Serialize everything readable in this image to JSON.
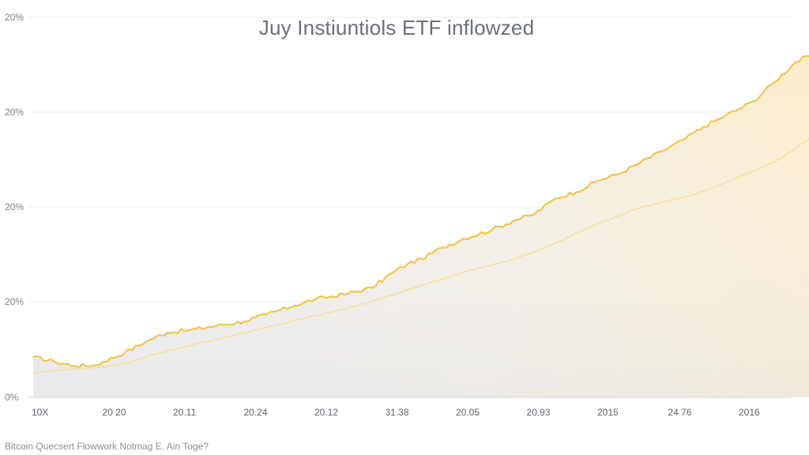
{
  "chart_data": {
    "type": "area",
    "title": "Juy Instiuntiols ETF inflowzed",
    "xlabel": "",
    "ylabel": "",
    "categories": [
      "10X",
      "20 20",
      "20.11",
      "20.24",
      "20.12",
      "31.38",
      "20.05",
      "20.93",
      "2015",
      "24 76",
      "2016"
    ],
    "y_tick_labels": [
      "0%",
      "20%",
      "20%",
      "20%",
      "20%",
      "20%"
    ],
    "grid": true,
    "legend": "none",
    "series": [
      {
        "points": [
          [
            0,
            0.9
          ],
          [
            0.3,
            0.8
          ],
          [
            0.6,
            0.7
          ],
          [
            0.9,
            0.72
          ],
          [
            1.0,
            0.8
          ],
          [
            1.3,
            1.0
          ],
          [
            1.6,
            1.25
          ],
          [
            1.9,
            1.45
          ],
          [
            2.2,
            1.5
          ],
          [
            2.6,
            1.6
          ],
          [
            3.0,
            1.7
          ],
          [
            3.3,
            1.85
          ],
          [
            3.7,
            2.05
          ],
          [
            4.0,
            2.2
          ],
          [
            4.4,
            2.3
          ],
          [
            4.8,
            2.45
          ],
          [
            5.1,
            2.8
          ],
          [
            5.3,
            2.98
          ],
          [
            5.5,
            3.1
          ],
          [
            5.8,
            3.35
          ],
          [
            6.1,
            3.55
          ],
          [
            6.5,
            3.75
          ],
          [
            6.8,
            3.95
          ],
          [
            7.1,
            4.1
          ],
          [
            7.4,
            4.45
          ],
          [
            7.7,
            4.6
          ],
          [
            8.0,
            4.85
          ],
          [
            8.3,
            5.0
          ],
          [
            8.6,
            5.25
          ],
          [
            8.9,
            5.5
          ],
          [
            9.2,
            5.75
          ],
          [
            9.5,
            6.05
          ],
          [
            9.8,
            6.3
          ],
          [
            10.0,
            6.45
          ],
          [
            10.2,
            6.62
          ],
          [
            10.5,
            7.05
          ],
          [
            10.8,
            7.5
          ],
          [
            11.1,
            7.7
          ],
          [
            11.4,
            7.85
          ],
          [
            11.7,
            8.0
          ]
        ],
        "color": "#f2c54e"
      },
      {
        "points": [
          [
            0,
            0.55
          ],
          [
            0.3,
            0.6
          ],
          [
            0.7,
            0.65
          ],
          [
            1.0,
            0.68
          ],
          [
            1.4,
            0.8
          ],
          [
            1.8,
            1.0
          ],
          [
            2.2,
            1.15
          ],
          [
            2.6,
            1.3
          ],
          [
            3.0,
            1.45
          ],
          [
            3.4,
            1.6
          ],
          [
            3.8,
            1.75
          ],
          [
            4.2,
            1.9
          ],
          [
            4.6,
            2.05
          ],
          [
            5.0,
            2.25
          ],
          [
            5.4,
            2.45
          ],
          [
            5.8,
            2.65
          ],
          [
            6.2,
            2.85
          ],
          [
            6.6,
            3.0
          ],
          [
            7.0,
            3.2
          ],
          [
            7.4,
            3.45
          ],
          [
            7.8,
            3.75
          ],
          [
            8.2,
            4.0
          ],
          [
            8.6,
            4.25
          ],
          [
            9.0,
            4.4
          ],
          [
            9.4,
            4.55
          ],
          [
            9.8,
            4.8
          ],
          [
            10.2,
            5.05
          ],
          [
            10.6,
            5.35
          ],
          [
            11.0,
            5.8
          ],
          [
            11.3,
            6.2
          ],
          [
            11.5,
            6.5
          ]
        ],
        "color": "#f3e2a2"
      }
    ],
    "ylim": [
      0,
      8.5
    ]
  },
  "footer_text": "Bitcoin Quecsert Flowwork Notmag E. Ain Toge?"
}
